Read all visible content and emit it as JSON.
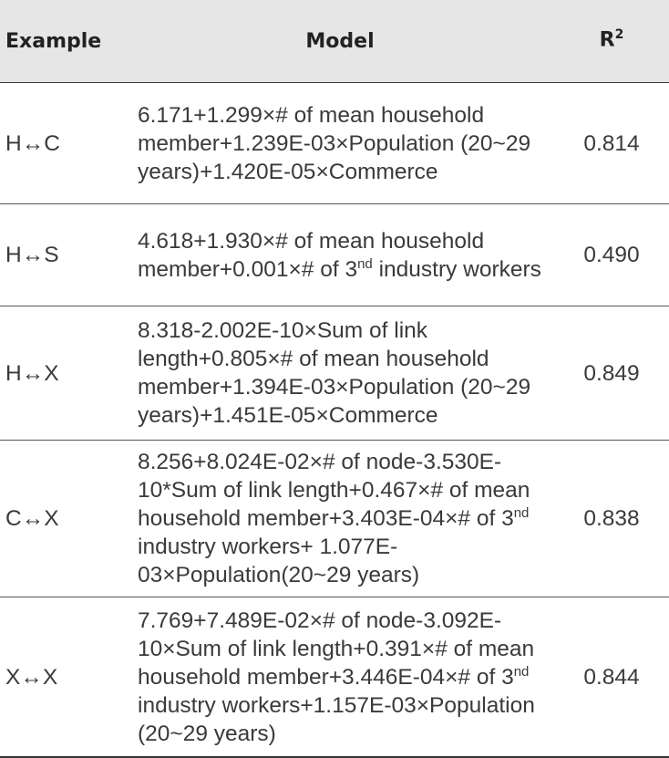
{
  "header": {
    "example": "Example",
    "model": "Model",
    "r2_base": "R",
    "r2_sup": "2"
  },
  "rows": [
    {
      "example": "H↔C",
      "model": {
        "text": "6.171+1.299×# of mean household member+1.239E-03×Population (20~29 years)+1.420E-05×Commerce"
      },
      "r2": "0.814"
    },
    {
      "example": "H↔S",
      "model": {
        "part1": "4.618+1.930×# of mean household member+0.001×# of 3",
        "sup1": "nd",
        "part2": " industry workers"
      },
      "r2": "0.490"
    },
    {
      "example": "H↔X",
      "model": {
        "text": "8.318-2.002E-10×Sum of link length+0.805×# of mean household member+1.394E-03×Population (20~29 years)+1.451E-05×Commerce"
      },
      "r2": "0.849"
    },
    {
      "example": "C↔X",
      "model": {
        "part1": "8.256+8.024E-02×# of node-3.530E-10*Sum of link length+0.467×# of mean household member+3.403E-04×# of 3",
        "sup1": "nd",
        "part2": " industry workers+ 1.077E-03×Population(20~29 years)"
      },
      "r2": "0.838"
    },
    {
      "example": "X↔X",
      "model": {
        "part1": "7.769+7.489E-02×# of node-3.092E-10×Sum of link length+0.391×# of mean household member+3.446E-04×# of 3",
        "sup1": "nd",
        "part2": " industry workers+1.157E-03×Population (20~29 years)"
      },
      "r2": "0.844"
    }
  ]
}
